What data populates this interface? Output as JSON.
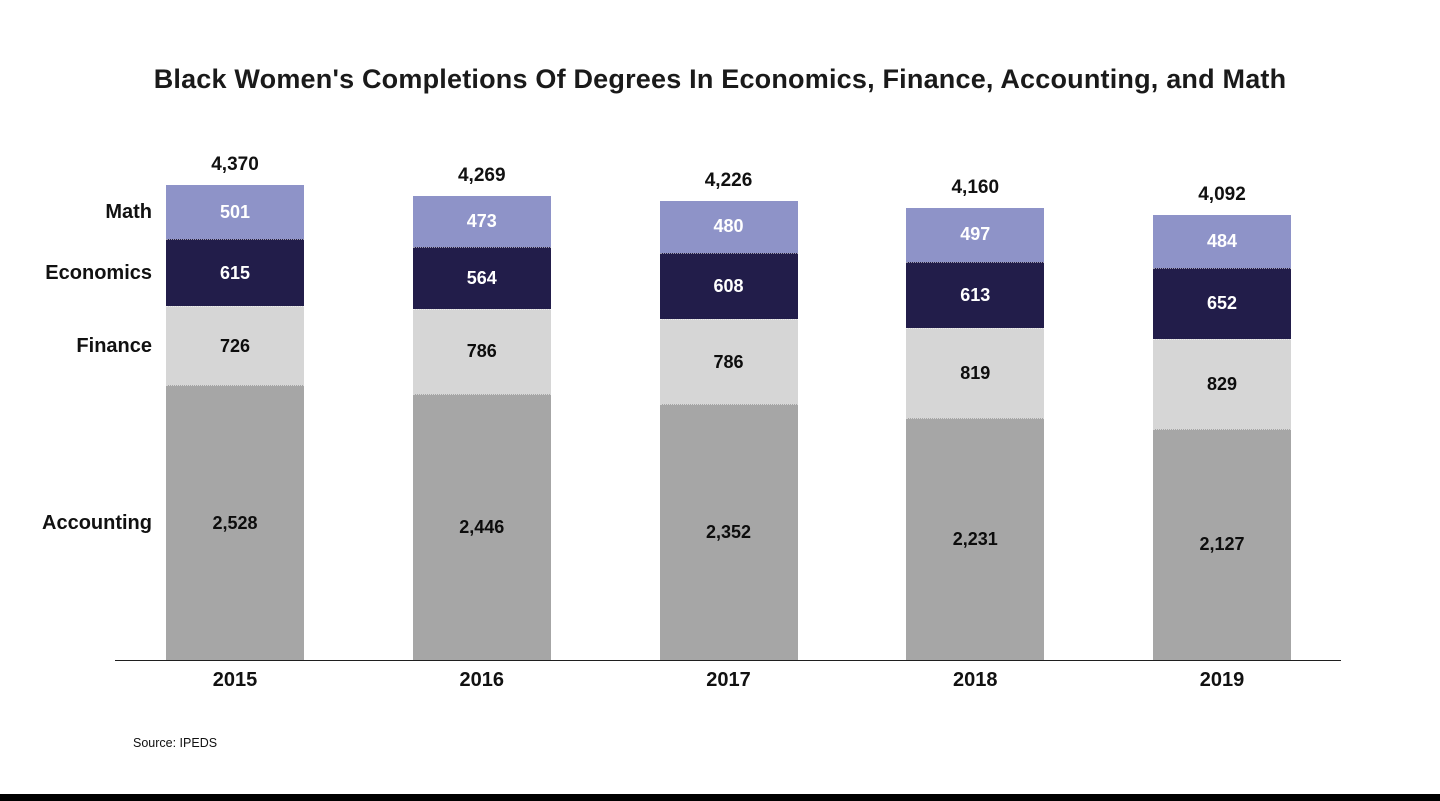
{
  "title": "Black Women's Completions Of Degrees In Economics, Finance, Accounting, and Math",
  "source_note": "Source: IPEDS",
  "chart_data": {
    "type": "bar",
    "stacked": true,
    "title": "Black Women's Completions Of Degrees In Economics, Finance, Accounting, and Math",
    "categories": [
      "2015",
      "2016",
      "2017",
      "2018",
      "2019"
    ],
    "series": [
      {
        "name": "Accounting",
        "color": "#a6a6a6",
        "label_color": "#0d0d0d",
        "values": [
          2528,
          2446,
          2352,
          2231,
          2127
        ]
      },
      {
        "name": "Finance",
        "color": "#d6d6d6",
        "label_color": "#0d0d0d",
        "values": [
          726,
          786,
          786,
          819,
          829
        ]
      },
      {
        "name": "Economics",
        "color": "#221d4a",
        "label_color": "#ffffff",
        "values": [
          615,
          564,
          608,
          613,
          652
        ]
      },
      {
        "name": "Math",
        "color": "#8e93c8",
        "label_color": "#ffffff",
        "values": [
          501,
          473,
          480,
          497,
          484
        ]
      }
    ],
    "totals": [
      4370,
      4269,
      4226,
      4160,
      4092
    ],
    "ylim": [
      0,
      4370
    ],
    "grid": false,
    "legend_position": "left",
    "xlabel": "",
    "ylabel": "",
    "source": "Source: IPEDS"
  }
}
